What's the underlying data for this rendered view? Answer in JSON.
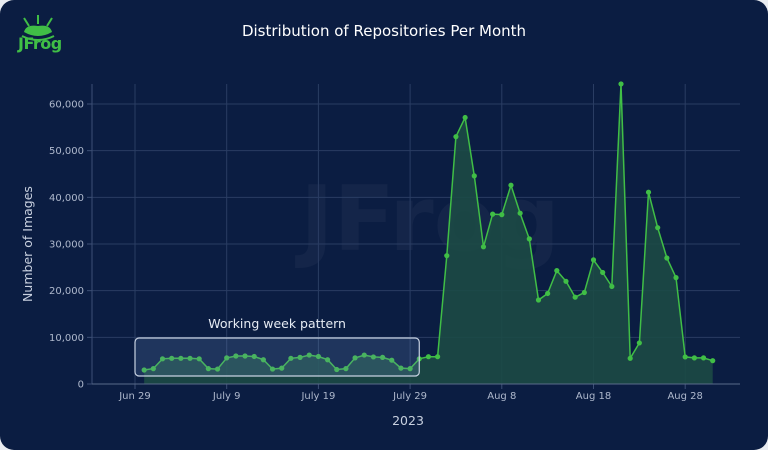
{
  "brand": {
    "name": "JFrog",
    "accent": "#40be46"
  },
  "chart_data": {
    "type": "area",
    "title": "Distribution of Repositories Per Month",
    "xlabel": "2023",
    "ylabel": "Number of Images",
    "ylim": [
      0,
      60000
    ],
    "y_ticks": [
      "0",
      "10,000",
      "20,000",
      "30,000",
      "40,000",
      "50,000",
      "60,000"
    ],
    "y_tick_values": [
      0,
      10000,
      20000,
      30000,
      40000,
      50000,
      60000
    ],
    "x_ticks": [
      "Jun 29",
      "July 9",
      "July 19",
      "July 29",
      "Aug 8",
      "Aug 18",
      "Aug 28"
    ],
    "x_tick_dates": [
      "2023-06-29",
      "2023-07-09",
      "2023-07-19",
      "2023-07-29",
      "2023-08-08",
      "2023-08-18",
      "2023-08-28"
    ],
    "grid": true,
    "line_color": "#40be46",
    "fill_color": "#1c4a45",
    "start_date": "2023-06-30",
    "interval": "daily",
    "values": [
      3000,
      3300,
      5400,
      5500,
      5500,
      5500,
      5400,
      3300,
      3200,
      5600,
      6000,
      6000,
      5900,
      5200,
      3200,
      3400,
      5500,
      5700,
      6200,
      5900,
      5200,
      3100,
      3300,
      5600,
      6200,
      5800,
      5700,
      5100,
      3400,
      3300,
      5400,
      5850,
      5850,
      27500,
      53000,
      57100,
      44600,
      29400,
      36400,
      36300,
      42600,
      36600,
      31100,
      18000,
      19400,
      24300,
      22000,
      18600,
      19600,
      26600,
      23900,
      20900,
      64300,
      5500,
      8800,
      41100,
      33500,
      27000,
      22800,
      5800,
      5600,
      5600,
      5000
    ],
    "annotation": {
      "text": "Working week pattern",
      "from": "2023-06-29",
      "to": "2023-07-30"
    }
  }
}
